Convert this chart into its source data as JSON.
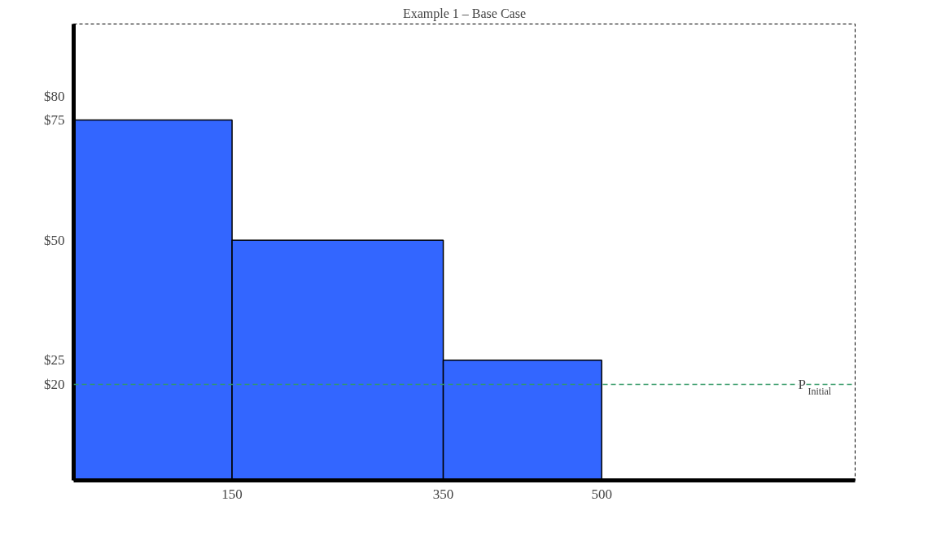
{
  "chart_data": {
    "type": "histogram",
    "title": "Example 1 – Base Case",
    "bins": [
      0,
      150,
      350,
      500
    ],
    "values": [
      75,
      50,
      25
    ],
    "color": "#3366ff",
    "xlim": [
      0,
      740
    ],
    "xticks": [
      150,
      350,
      500
    ],
    "ylim": [
      0,
      95
    ],
    "yticks": [
      {
        "value": 20,
        "label": "$20"
      },
      {
        "value": 25,
        "label": "$25"
      },
      {
        "value": 50,
        "label": "$50"
      },
      {
        "value": 75,
        "label": "$75"
      },
      {
        "value": 80,
        "label": "$80"
      }
    ],
    "ref_lines": [
      {
        "axis": "y",
        "value": 20,
        "label": "P$_{Initial}$",
        "color": "#339966",
        "line_style": "dashed"
      }
    ],
    "grid": false
  }
}
